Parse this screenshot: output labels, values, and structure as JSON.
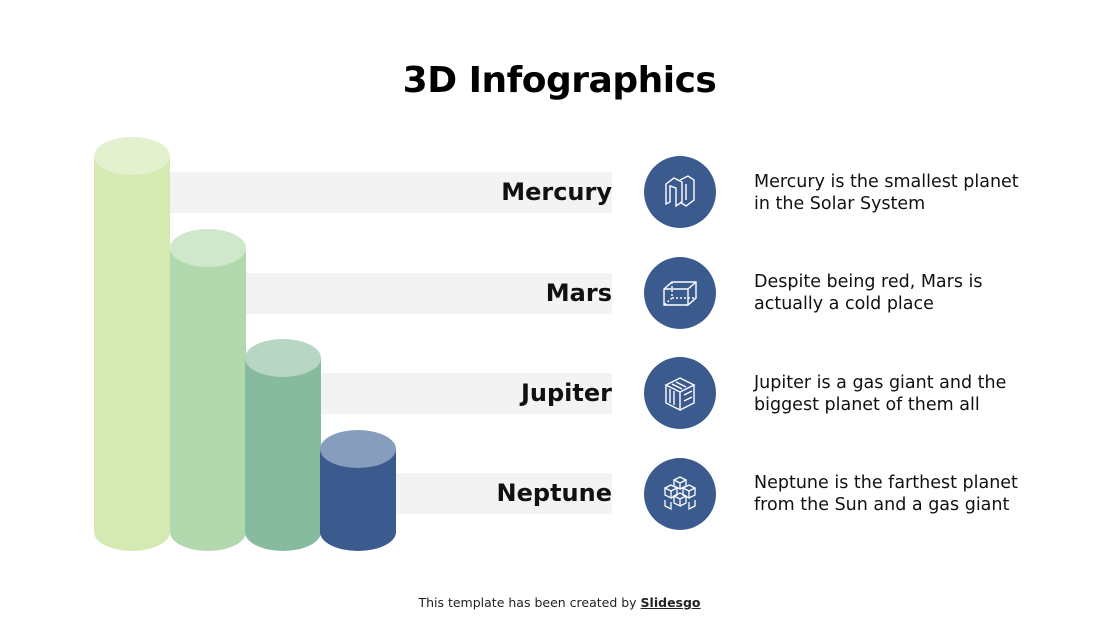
{
  "title": "3D Infographics",
  "items": [
    {
      "label": "Mercury",
      "icon": "impossible-shape-icon",
      "description_line1": "Mercury is the smallest planet",
      "description_line2": "in the Solar System",
      "color": "#d5eab2",
      "top_color": "#e3f1cf"
    },
    {
      "label": "Mars",
      "icon": "wireframe-cube-icon",
      "description_line1": "Despite being red, Mars is",
      "description_line2": "actually a cold place",
      "color": "#b2d9ae",
      "top_color": "#cfe7cb"
    },
    {
      "label": "Jupiter",
      "icon": "maze-cube-icon",
      "description_line1": "Jupiter is a gas giant and the",
      "description_line2": "biggest planet of them all",
      "color": "#87bb9e",
      "top_color": "#b7d6c4"
    },
    {
      "label": "Neptune",
      "icon": "cube-cluster-icon",
      "description_line1": "Neptune is the farthest planet",
      "description_line2": "from the Sun and a gas giant",
      "color": "#3b5a8e",
      "top_color": "#879dbd"
    }
  ],
  "icon_circle_color": "#3b5a8e",
  "footer": {
    "text": "This template has been created by ",
    "brand": "Slidesgo"
  }
}
